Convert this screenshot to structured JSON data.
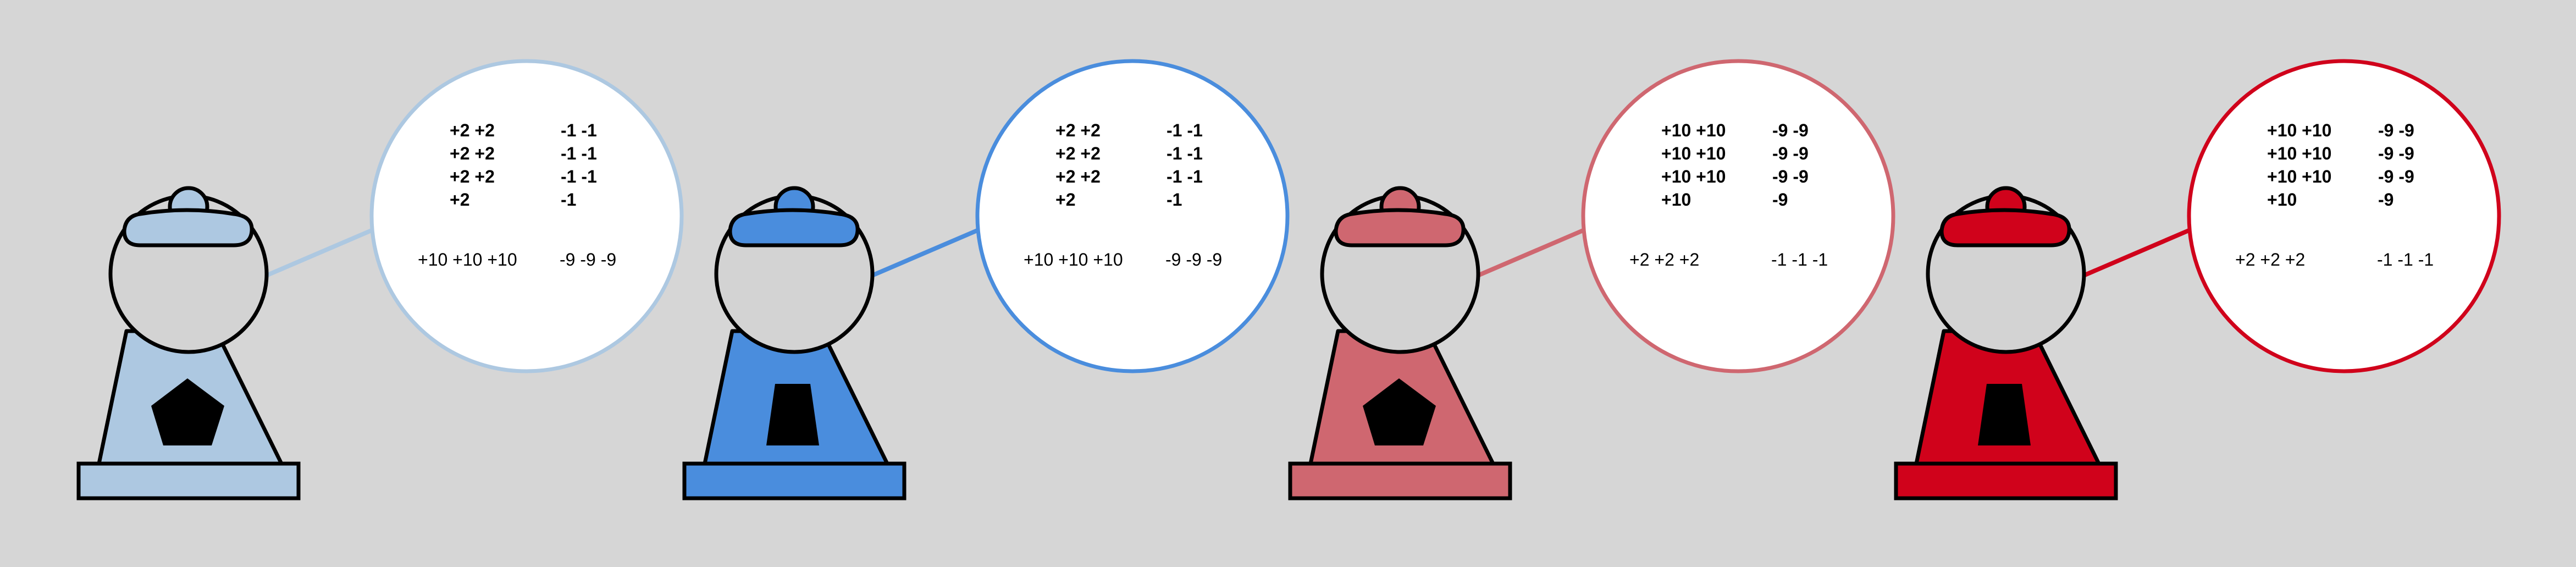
{
  "machines": [
    {
      "id": "light-blue",
      "color": "#adc8e1",
      "ring_color": "#adc8e1",
      "window_shape": "pentagon",
      "bubble": {
        "bold_left": [
          "+2 +2",
          "+2 +2",
          "+2 +2",
          "+2"
        ],
        "bold_right": [
          "-1 -1",
          "-1 -1",
          "-1 -1",
          "-1"
        ],
        "plain_left": "+10 +10 +10",
        "plain_right": "-9 -9 -9"
      }
    },
    {
      "id": "blue",
      "color": "#4a8ddd",
      "ring_color": "#4a8ddd",
      "window_shape": "trapezoid",
      "bubble": {
        "bold_left": [
          "+2 +2",
          "+2 +2",
          "+2 +2",
          "+2"
        ],
        "bold_right": [
          "-1 -1",
          "-1 -1",
          "-1 -1",
          "-1"
        ],
        "plain_left": "+10 +10 +10",
        "plain_right": "-9 -9 -9"
      }
    },
    {
      "id": "light-red",
      "color": "#cf6770",
      "ring_color": "#cf6770",
      "window_shape": "pentagon",
      "bubble": {
        "bold_left": [
          "+10 +10",
          "+10 +10",
          "+10 +10",
          "+10"
        ],
        "bold_right": [
          "-9 -9",
          "-9 -9",
          "-9 -9",
          "-9"
        ],
        "plain_left": "+2 +2 +2",
        "plain_right": "-1 -1 -1"
      }
    },
    {
      "id": "red",
      "color": "#d0021b",
      "ring_color": "#d0021b",
      "window_shape": "trapezoid",
      "bubble": {
        "bold_left": [
          "+10 +10",
          "+10 +10",
          "+10 +10",
          "+10"
        ],
        "bold_right": [
          "-9 -9",
          "-9 -9",
          "-9 -9",
          "-9"
        ],
        "plain_left": "+2 +2 +2",
        "plain_right": "-1 -1 -1"
      }
    }
  ]
}
